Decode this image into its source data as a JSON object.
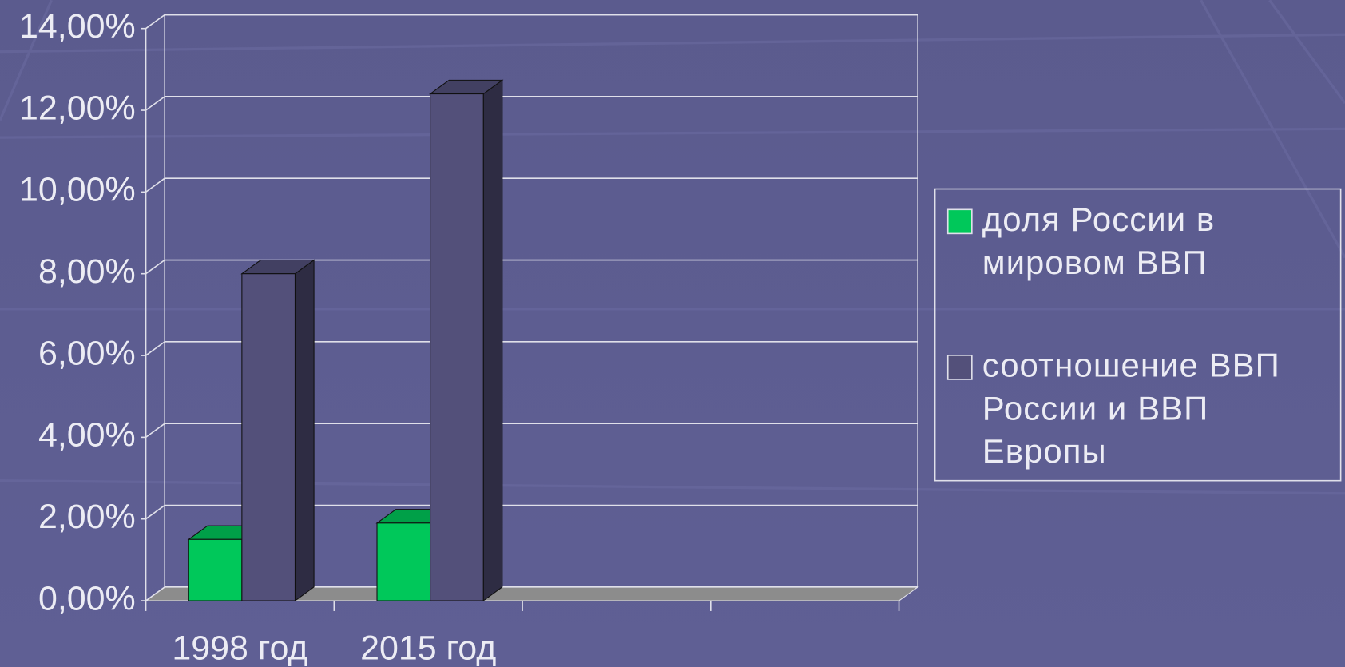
{
  "chart_data": {
    "type": "bar3d",
    "categories": [
      "1998 год",
      "2015 год",
      null,
      null
    ],
    "series": [
      {
        "name": "доля России в мировом ВВП",
        "color": "#00c85a",
        "values": [
          1.5,
          1.9,
          null,
          null
        ]
      },
      {
        "name": "соотношение ВВП России и ВВП Европы",
        "color": "#53507a",
        "values": [
          8.0,
          12.4,
          null,
          null
        ]
      }
    ],
    "ylim": [
      0,
      14
    ],
    "yticks": [
      {
        "value": 0,
        "label": "0,00%"
      },
      {
        "value": 2,
        "label": "2,00%"
      },
      {
        "value": 4,
        "label": "4,00%"
      },
      {
        "value": 6,
        "label": "6,00%"
      },
      {
        "value": 8,
        "label": "8,00%"
      },
      {
        "value": 10,
        "label": "10,00%"
      },
      {
        "value": 12,
        "label": "12,00%"
      },
      {
        "value": 14,
        "label": "14,00%"
      }
    ],
    "grid": true,
    "legend": "right"
  }
}
